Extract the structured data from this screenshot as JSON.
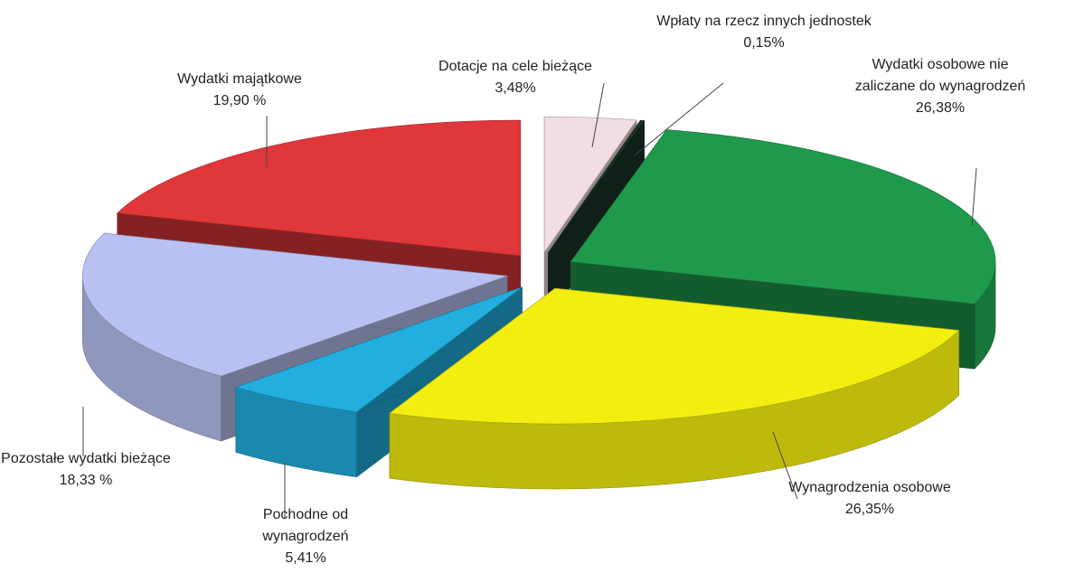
{
  "chart_data": {
    "type": "pie3d",
    "categories": [
      "Dotacje na cele bieżące",
      "Wpłaty na rzecz innych jednostek",
      "Wydatki osobowe nie zaliczane do wynagrodzeń",
      "Wynagrodzenia osobowe",
      "Pochodne od wynagrodzeń",
      "Pozostałe wydatki bieżące",
      "Wydatki majątkowe"
    ],
    "values": [
      3.48,
      0.15,
      26.38,
      26.35,
      5.41,
      18.33,
      19.9
    ],
    "value_labels": [
      "3,48%",
      "0,15%",
      "26,38%",
      "26,35%",
      "5,41%",
      "18,33 %",
      "19,90 %"
    ],
    "colors": [
      "#f1dde2",
      "#1b3326",
      "#1f9a4c",
      "#f2ee10",
      "#22afe0",
      "#b9c1f2",
      "#e0373a"
    ]
  }
}
